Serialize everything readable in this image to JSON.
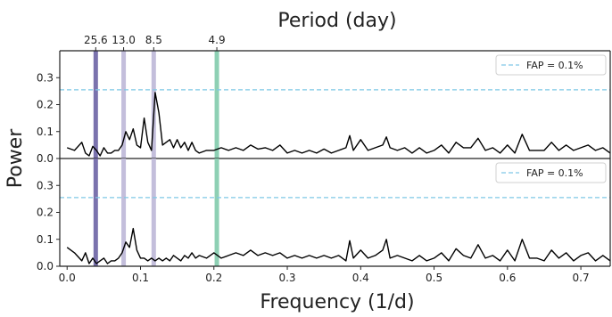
{
  "chart_data": {
    "type": "line",
    "top_axis_title": "Period (day)",
    "xlabel": "Frequency (1/d)",
    "ylabel": "Power",
    "xlim": [
      -0.01,
      0.74
    ],
    "x_ticks": [
      0.0,
      0.1,
      0.2,
      0.3,
      0.4,
      0.5,
      0.6,
      0.7
    ],
    "x_tick_labels": [
      "0.0",
      "0.1",
      "0.2",
      "0.3",
      "0.4",
      "0.5",
      "0.6",
      "0.7"
    ],
    "period_markers": [
      {
        "label": "25.6",
        "frequency": 0.039,
        "color": "#7a72ad"
      },
      {
        "label": "13.0",
        "frequency": 0.077,
        "color": "#c3bedb"
      },
      {
        "label": "8.5",
        "frequency": 0.118,
        "color": "#c3bedb"
      },
      {
        "label": "4.9",
        "frequency": 0.204,
        "color": "#8ed0b4"
      }
    ],
    "legend_position": "top-right",
    "panels": [
      {
        "ylim": [
          0,
          0.4
        ],
        "y_ticks": [
          0.0,
          0.1,
          0.2,
          0.3
        ],
        "y_tick_labels": [
          "0.0",
          "0.1",
          "0.2",
          "0.3"
        ],
        "fap_level": 0.255,
        "fap_label": "FAP =  0.1%",
        "series": {
          "x": [
            0.0,
            0.01,
            0.02,
            0.025,
            0.03,
            0.035,
            0.04,
            0.045,
            0.05,
            0.055,
            0.06,
            0.065,
            0.07,
            0.075,
            0.08,
            0.085,
            0.09,
            0.095,
            0.1,
            0.105,
            0.11,
            0.115,
            0.12,
            0.125,
            0.13,
            0.135,
            0.14,
            0.145,
            0.15,
            0.155,
            0.16,
            0.165,
            0.17,
            0.175,
            0.18,
            0.19,
            0.2,
            0.21,
            0.22,
            0.23,
            0.24,
            0.25,
            0.26,
            0.27,
            0.28,
            0.29,
            0.3,
            0.31,
            0.32,
            0.33,
            0.34,
            0.35,
            0.36,
            0.37,
            0.38,
            0.385,
            0.39,
            0.4,
            0.41,
            0.42,
            0.43,
            0.435,
            0.44,
            0.45,
            0.46,
            0.47,
            0.48,
            0.49,
            0.5,
            0.51,
            0.52,
            0.53,
            0.54,
            0.55,
            0.56,
            0.57,
            0.58,
            0.59,
            0.6,
            0.61,
            0.62,
            0.63,
            0.64,
            0.65,
            0.66,
            0.67,
            0.68,
            0.69,
            0.7,
            0.71,
            0.72,
            0.73,
            0.74
          ],
          "y": [
            0.04,
            0.03,
            0.06,
            0.02,
            0.01,
            0.045,
            0.03,
            0.01,
            0.04,
            0.02,
            0.02,
            0.03,
            0.03,
            0.05,
            0.1,
            0.07,
            0.11,
            0.05,
            0.04,
            0.15,
            0.06,
            0.03,
            0.245,
            0.17,
            0.05,
            0.06,
            0.07,
            0.04,
            0.07,
            0.04,
            0.06,
            0.03,
            0.06,
            0.03,
            0.02,
            0.03,
            0.03,
            0.04,
            0.03,
            0.04,
            0.03,
            0.05,
            0.035,
            0.04,
            0.03,
            0.05,
            0.02,
            0.03,
            0.02,
            0.03,
            0.02,
            0.035,
            0.02,
            0.03,
            0.04,
            0.085,
            0.03,
            0.07,
            0.03,
            0.04,
            0.05,
            0.08,
            0.04,
            0.03,
            0.04,
            0.02,
            0.04,
            0.02,
            0.03,
            0.05,
            0.02,
            0.06,
            0.04,
            0.04,
            0.075,
            0.03,
            0.04,
            0.02,
            0.05,
            0.02,
            0.09,
            0.03,
            0.03,
            0.03,
            0.06,
            0.03,
            0.05,
            0.03,
            0.04,
            0.05,
            0.03,
            0.04,
            0.02
          ]
        }
      },
      {
        "ylim": [
          0,
          0.4
        ],
        "y_ticks": [
          0.0,
          0.1,
          0.2,
          0.3
        ],
        "y_tick_labels": [
          "0.0",
          "0.1",
          "0.2",
          "0.3"
        ],
        "fap_level": 0.255,
        "fap_label": "FAP =  0.1%",
        "series": {
          "x": [
            0.0,
            0.01,
            0.02,
            0.025,
            0.03,
            0.035,
            0.04,
            0.045,
            0.05,
            0.055,
            0.06,
            0.065,
            0.07,
            0.075,
            0.08,
            0.085,
            0.09,
            0.095,
            0.1,
            0.105,
            0.11,
            0.115,
            0.12,
            0.125,
            0.13,
            0.135,
            0.14,
            0.145,
            0.15,
            0.155,
            0.16,
            0.165,
            0.17,
            0.175,
            0.18,
            0.19,
            0.2,
            0.21,
            0.22,
            0.23,
            0.24,
            0.25,
            0.26,
            0.27,
            0.28,
            0.29,
            0.3,
            0.31,
            0.32,
            0.33,
            0.34,
            0.35,
            0.36,
            0.37,
            0.38,
            0.385,
            0.39,
            0.4,
            0.41,
            0.42,
            0.43,
            0.435,
            0.44,
            0.45,
            0.46,
            0.47,
            0.48,
            0.49,
            0.5,
            0.51,
            0.52,
            0.53,
            0.54,
            0.55,
            0.56,
            0.57,
            0.58,
            0.59,
            0.6,
            0.61,
            0.62,
            0.63,
            0.64,
            0.65,
            0.66,
            0.67,
            0.68,
            0.69,
            0.7,
            0.71,
            0.72,
            0.73,
            0.74
          ],
          "y": [
            0.07,
            0.05,
            0.02,
            0.05,
            0.01,
            0.03,
            0.01,
            0.02,
            0.03,
            0.01,
            0.02,
            0.02,
            0.03,
            0.05,
            0.09,
            0.07,
            0.14,
            0.06,
            0.03,
            0.03,
            0.02,
            0.03,
            0.02,
            0.03,
            0.02,
            0.03,
            0.02,
            0.04,
            0.03,
            0.02,
            0.04,
            0.03,
            0.05,
            0.03,
            0.04,
            0.03,
            0.05,
            0.03,
            0.04,
            0.05,
            0.04,
            0.06,
            0.04,
            0.05,
            0.04,
            0.05,
            0.03,
            0.04,
            0.03,
            0.04,
            0.03,
            0.04,
            0.03,
            0.04,
            0.02,
            0.095,
            0.03,
            0.06,
            0.03,
            0.04,
            0.06,
            0.1,
            0.03,
            0.04,
            0.03,
            0.02,
            0.04,
            0.02,
            0.03,
            0.05,
            0.02,
            0.065,
            0.04,
            0.03,
            0.08,
            0.03,
            0.04,
            0.02,
            0.06,
            0.02,
            0.1,
            0.03,
            0.03,
            0.02,
            0.06,
            0.03,
            0.05,
            0.02,
            0.04,
            0.05,
            0.02,
            0.04,
            0.02
          ]
        }
      }
    ]
  }
}
